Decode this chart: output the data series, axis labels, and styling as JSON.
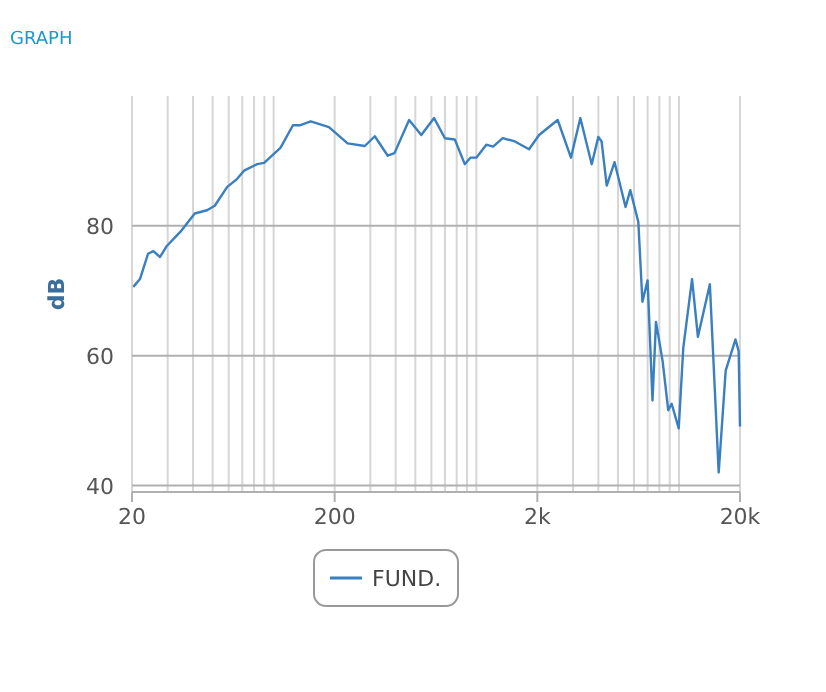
{
  "chart_data": {
    "type": "line",
    "title": "GRAPH",
    "ylabel": "dB",
    "log": "x",
    "grid": true,
    "legend": "bottom",
    "marker": "none",
    "line_style": "solid",
    "xlim": [
      20,
      20000
    ],
    "ylim": [
      39,
      100
    ],
    "xticks": [
      20,
      {
        "value": 30,
        "label": null
      },
      {
        "value": 40,
        "label": null
      },
      {
        "value": 50,
        "label": null
      },
      {
        "value": 60,
        "label": null
      },
      {
        "value": 70,
        "label": null
      },
      {
        "value": 80,
        "label": null
      },
      {
        "value": 90,
        "label": null
      },
      {
        "value": 100,
        "label": null
      },
      200,
      {
        "value": 300,
        "label": null
      },
      {
        "value": 400,
        "label": null
      },
      {
        "value": 500,
        "label": null
      },
      {
        "value": 600,
        "label": null
      },
      {
        "value": 700,
        "label": null
      },
      {
        "value": 800,
        "label": null
      },
      {
        "value": 900,
        "label": null
      },
      {
        "value": 1000,
        "label": null
      },
      {
        "value": 2000,
        "label": "2k"
      },
      {
        "value": 3000,
        "label": null
      },
      {
        "value": 4000,
        "label": null
      },
      {
        "value": 5000,
        "label": null
      },
      {
        "value": 6000,
        "label": null
      },
      {
        "value": 7000,
        "label": null
      },
      {
        "value": 8000,
        "label": null
      },
      {
        "value": 9000,
        "label": null
      },
      {
        "value": 10000,
        "label": null
      },
      {
        "value": 20000,
        "label": "20k"
      }
    ],
    "yticks": [
      40,
      60,
      80
    ],
    "series": [
      {
        "name": "FUND.",
        "color": "#3a7fbf",
        "x": [
          20.3,
          21.9,
          24,
          25.5,
          27.5,
          29.7,
          34.7,
          40.8,
          46.9,
          51.2,
          59,
          65.9,
          71.4,
          82.9,
          89.7,
          108,
          124.5,
          135.6,
          152.3,
          187.4,
          231.7,
          281.8,
          315.5,
          365.6,
          394.6,
          466,
          535,
          619,
          700,
          783,
          877,
          935,
          1000,
          1120,
          1210,
          1350,
          1550,
          1820,
          2040,
          2520,
          2930,
          3260,
          3710,
          4000,
          4150,
          4400,
          4810,
          5450,
          5750,
          6300,
          6600,
          7000,
          7400,
          7700,
          8300,
          8850,
          9200,
          9970,
          10500,
          11600,
          12400,
          14200,
          15700,
          17000,
          19000,
          19700,
          20000
        ],
        "values": [
          70.6,
          71.8,
          75.7,
          76.1,
          75.2,
          76.9,
          79.1,
          81.9,
          82.4,
          83.1,
          86,
          87.2,
          88.5,
          89.5,
          89.7,
          92,
          95.5,
          95.5,
          96.1,
          95.2,
          92.7,
          92.3,
          93.8,
          90.8,
          91.2,
          96.3,
          94,
          96.6,
          93.5,
          93.3,
          89.5,
          90.5,
          90.5,
          92.5,
          92.2,
          93.5,
          93,
          91.8,
          94,
          96.3,
          90.5,
          96.6,
          89.5,
          93.7,
          93,
          86.2,
          89.8,
          82.9,
          85.5,
          80.6,
          68.3,
          71.6,
          53.1,
          65.2,
          59.2,
          51.6,
          52.6,
          48.8,
          61.2,
          71.8,
          62.9,
          71,
          42,
          57.7,
          62.5,
          60.7,
          49.1
        ]
      }
    ]
  }
}
